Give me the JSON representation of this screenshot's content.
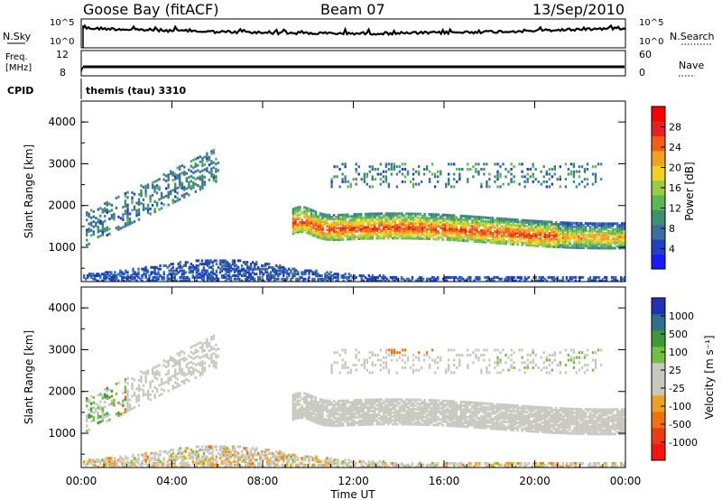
{
  "header": {
    "station": "Goose Bay (fitACF)",
    "beam": "Beam 07",
    "date": "13/Sep/2010"
  },
  "top_panels": {
    "nsky_label": "N.Sky",
    "nsky_ticks": [
      "10^5",
      "10^0"
    ],
    "nsky_right_ticks": [
      "10^5",
      "10^0"
    ],
    "nsearch_label": "N.Search",
    "freq_label_line1": "Freq.",
    "freq_label_line2": "[MHz]",
    "freq_ticks": [
      "12",
      "8"
    ],
    "nave_label": "Nave",
    "nave_ticks": [
      "60",
      "0"
    ],
    "cpid_label": "CPID",
    "cpid_value": "themis (tau) 3310"
  },
  "colors": {
    "power_scale": [
      "#1a1aff",
      "#2040c0",
      "#3a6fa0",
      "#3d9070",
      "#58b858",
      "#9acc3c",
      "#f0d020",
      "#f3a020",
      "#f06010",
      "#e82020",
      "#ff0000"
    ],
    "velocity_scale": [
      "#ff1010",
      "#ee3a10",
      "#f07010",
      "#f0a020",
      "#c8c8c0",
      "#c8c8c0",
      "#70c040",
      "#3a9a3a",
      "#2f6e8c",
      "#2030b8"
    ]
  },
  "chart_data": [
    {
      "type": "heatmap",
      "name": "power",
      "ylabel": "Slant Range [km]",
      "ylim": [
        180,
        4500
      ],
      "yticks": [
        1000,
        2000,
        3000,
        4000
      ],
      "xlim": [
        0,
        24
      ],
      "colorbar": {
        "label": "Power [dB]",
        "range": [
          0,
          32
        ],
        "ticks": [
          4,
          8,
          12,
          16,
          20,
          24,
          28
        ]
      },
      "features": [
        {
          "region": "ionospheric band",
          "x": [
            9.3,
            24
          ],
          "y": [
            1200,
            1700
          ],
          "values_db": [
            14,
            28
          ]
        },
        {
          "region": "early scatter",
          "x": [
            0.2,
            6.0
          ],
          "y": [
            1000,
            3200
          ],
          "values_db": [
            4,
            12
          ]
        },
        {
          "region": "upper patches",
          "x": [
            11,
            23
          ],
          "y": [
            2400,
            3000
          ],
          "values_db": [
            4,
            12
          ]
        },
        {
          "region": "near-range ground",
          "x": [
            0,
            24
          ],
          "y": [
            180,
            700
          ],
          "values_db": [
            2,
            8
          ]
        }
      ]
    },
    {
      "type": "heatmap",
      "name": "velocity",
      "ylabel": "Slant Range [km]",
      "ylim": [
        180,
        4500
      ],
      "yticks": [
        1000,
        2000,
        3000,
        4000
      ],
      "xlim": [
        0,
        24
      ],
      "xlabel": "Time UT",
      "xticks": [
        "00:00",
        "04:00",
        "08:00",
        "12:00",
        "16:00",
        "20:00",
        "00:00"
      ],
      "colorbar": {
        "label": "Velocity [m s⁻¹]",
        "ticks": [
          "1000",
          "500",
          "100",
          "25",
          "-25",
          "-100",
          "-500",
          "-1000"
        ]
      },
      "features": [
        {
          "region": "ground scatter band",
          "x": [
            9.3,
            24
          ],
          "y": [
            1200,
            2000
          ],
          "values_ms": [
            -25,
            25
          ]
        },
        {
          "region": "early patches",
          "x": [
            0.2,
            6.0
          ],
          "y": [
            1000,
            3300
          ],
          "values_ms": [
            -25,
            100
          ]
        },
        {
          "region": "negative patch",
          "x": [
            13.5,
            15.5
          ],
          "y": [
            3100,
            3400
          ],
          "values_ms": [
            -500,
            -100
          ]
        }
      ]
    }
  ]
}
